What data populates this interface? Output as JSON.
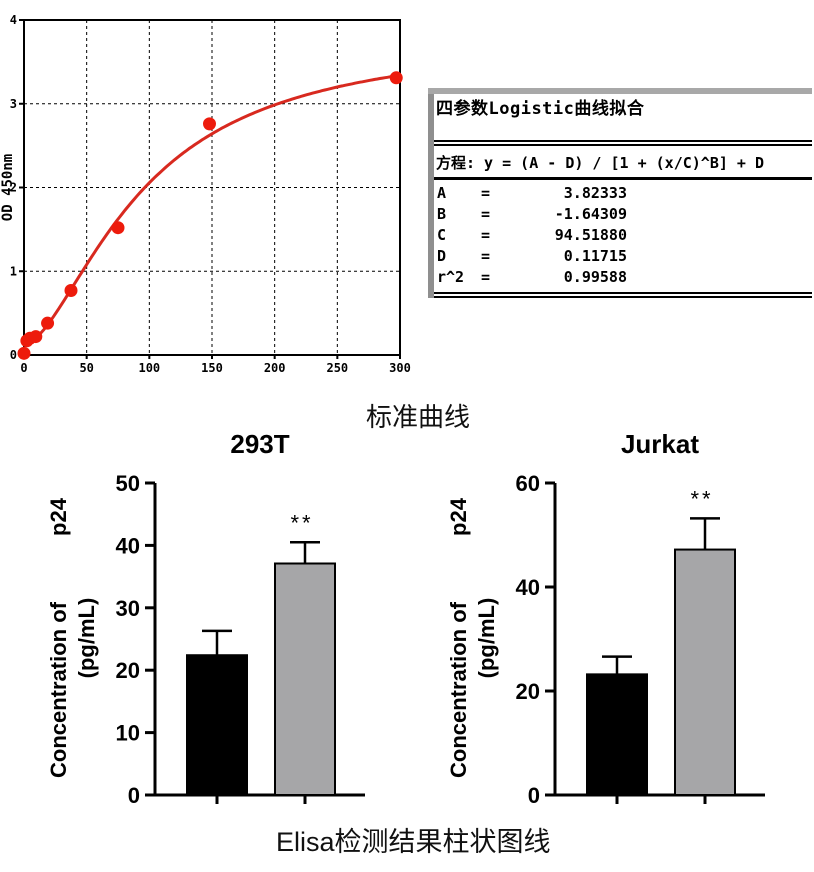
{
  "captions": {
    "standard_curve": "标准曲线",
    "bottom": "Elisa检测结果柱状图线"
  },
  "fit_box": {
    "title": "四参数Logistic曲线拟合",
    "equation": "方程: y = (A - D) / [1 + (x/C)^B] + D",
    "eq_sign": "=",
    "params": [
      {
        "name": "A",
        "value": "3.82333"
      },
      {
        "name": "B",
        "value": "-1.64309"
      },
      {
        "name": "C",
        "value": "94.51880"
      },
      {
        "name": "D",
        "value": "0.11715"
      },
      {
        "name": "r^2",
        "value": "0.99588"
      }
    ]
  },
  "chart_data": [
    {
      "type": "scatter",
      "name": "elisa-standard-curve",
      "title": "标准曲线",
      "xlabel": "",
      "ylabel": "OD 450nm",
      "xlim": [
        0,
        300
      ],
      "ylim": [
        0,
        4
      ],
      "xticks": [
        0,
        50,
        100,
        150,
        200,
        250,
        300
      ],
      "yticks": [
        0,
        1,
        2,
        3,
        4
      ],
      "grid": "dashed",
      "point_color": "#ed1b0c",
      "line_color": "#d8291f",
      "points": [
        {
          "x": 0,
          "y": 0.02
        },
        {
          "x": 2.3,
          "y": 0.17
        },
        {
          "x": 4.7,
          "y": 0.2
        },
        {
          "x": 9.4,
          "y": 0.22
        },
        {
          "x": 18.8,
          "y": 0.38
        },
        {
          "x": 37.5,
          "y": 0.77
        },
        {
          "x": 75,
          "y": 1.52
        },
        {
          "x": 148,
          "y": 2.76
        },
        {
          "x": 297,
          "y": 3.31
        }
      ],
      "fit_curve": {
        "model": "4PL",
        "A": 3.82333,
        "B": -1.64309,
        "C": 94.5188,
        "D": 0.11715,
        "r2": 0.99588
      }
    },
    {
      "type": "bar",
      "title": "293T",
      "ylabel": "Concentration of p24 (pg/mL)",
      "ylabel_parts": {
        "line1_start": "Concentration of",
        "line1_end": "p24",
        "line2": "(pg/mL)"
      },
      "ylim": [
        0,
        50
      ],
      "yticks": [
        0,
        10,
        20,
        30,
        40,
        50
      ],
      "categories": [
        "",
        ""
      ],
      "bars": [
        {
          "value": 22.4,
          "error": 3.9,
          "color": "#000000",
          "sig": ""
        },
        {
          "value": 37.1,
          "error": 3.4,
          "color": "#a6a6a8",
          "sig": "**"
        }
      ]
    },
    {
      "type": "bar",
      "title": "Jurkat",
      "ylabel": "Concentration of p24 (pg/mL)",
      "ylabel_parts": {
        "line1_start": "Concentration of",
        "line1_end": "p24",
        "line2": "(pg/mL)"
      },
      "ylim": [
        0,
        60
      ],
      "yticks": [
        0,
        20,
        40,
        60
      ],
      "categories": [
        "",
        ""
      ],
      "bars": [
        {
          "value": 23.2,
          "error": 3.4,
          "color": "#000000",
          "sig": ""
        },
        {
          "value": 47.2,
          "error": 6.0,
          "color": "#a6a6a8",
          "sig": "**"
        }
      ]
    }
  ]
}
